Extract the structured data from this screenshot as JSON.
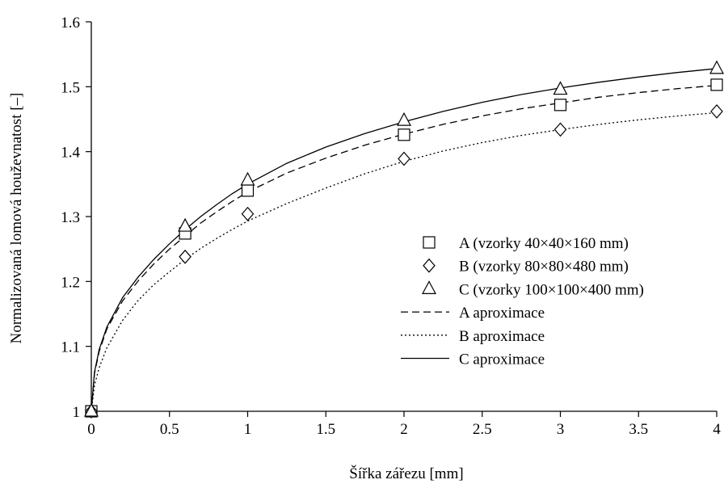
{
  "chart_data": {
    "type": "scatter",
    "title": "",
    "xlabel": "Šířka zářezu [mm]",
    "ylabel": "Normalizovaná lomová houževnatost [–]",
    "xlim": [
      0,
      4
    ],
    "ylim": [
      1,
      1.6
    ],
    "xticks": [
      0,
      0.5,
      1,
      1.5,
      2,
      2.5,
      3,
      3.5,
      4
    ],
    "xtick_labels": [
      "0",
      "0.5",
      "1",
      "1.5",
      "2",
      "2.5",
      "3",
      "3.5",
      "4"
    ],
    "yticks": [
      1,
      1.1,
      1.2,
      1.3,
      1.4,
      1.5,
      1.6
    ],
    "ytick_labels": [
      "1",
      "1.1",
      "1.2",
      "1.3",
      "1.4",
      "1.5",
      "1.6"
    ],
    "grid": false,
    "legend_position": "right",
    "series": [
      {
        "name": "A (vzorky 40×40×160 mm)",
        "kind": "markers",
        "marker": "square",
        "x": [
          0,
          0.6,
          1,
          2,
          3,
          4
        ],
        "y": [
          1.0,
          1.274,
          1.34,
          1.426,
          1.472,
          1.503
        ]
      },
      {
        "name": "B (vzorky 80×80×480 mm)",
        "kind": "markers",
        "marker": "diamond",
        "x": [
          0,
          0.6,
          1,
          2,
          3,
          4
        ],
        "y": [
          1.0,
          1.238,
          1.304,
          1.389,
          1.434,
          1.462
        ]
      },
      {
        "name": "C (vzorky 100×100×400 mm)",
        "kind": "markers",
        "marker": "triangle",
        "x": [
          0,
          0.6,
          1,
          2,
          3,
          4
        ],
        "y": [
          1.0,
          1.285,
          1.356,
          1.448,
          1.496,
          1.528
        ]
      },
      {
        "name": "A aproximace",
        "kind": "line",
        "style": "dashed",
        "x": [
          0,
          0.02,
          0.05,
          0.1,
          0.2,
          0.3,
          0.4,
          0.5,
          0.6,
          0.7,
          0.8,
          0.9,
          1,
          1.25,
          1.5,
          1.75,
          2,
          2.25,
          2.5,
          2.75,
          3,
          3.25,
          3.5,
          3.75,
          4
        ],
        "y": [
          1.0,
          1.058,
          1.092,
          1.127,
          1.17,
          1.201,
          1.227,
          1.25,
          1.27,
          1.29,
          1.307,
          1.323,
          1.338,
          1.367,
          1.39,
          1.41,
          1.427,
          1.442,
          1.455,
          1.466,
          1.475,
          1.484,
          1.491,
          1.497,
          1.502
        ]
      },
      {
        "name": "B aproximace",
        "kind": "line",
        "style": "dotted",
        "x": [
          0,
          0.02,
          0.05,
          0.1,
          0.2,
          0.3,
          0.4,
          0.5,
          0.6,
          0.7,
          0.8,
          0.9,
          1,
          1.25,
          1.5,
          1.75,
          2,
          2.25,
          2.5,
          2.75,
          3,
          3.25,
          3.5,
          3.75,
          4
        ],
        "y": [
          1.0,
          1.04,
          1.067,
          1.098,
          1.14,
          1.171,
          1.195,
          1.215,
          1.234,
          1.251,
          1.266,
          1.28,
          1.293,
          1.32,
          1.344,
          1.366,
          1.385,
          1.401,
          1.414,
          1.425,
          1.434,
          1.442,
          1.449,
          1.455,
          1.46
        ]
      },
      {
        "name": "C aproximace",
        "kind": "line",
        "style": "solid",
        "x": [
          0,
          0.02,
          0.05,
          0.1,
          0.2,
          0.3,
          0.4,
          0.5,
          0.6,
          0.7,
          0.8,
          0.9,
          1,
          1.25,
          1.5,
          1.75,
          2,
          2.25,
          2.5,
          2.75,
          3,
          3.25,
          3.5,
          3.75,
          4
        ],
        "y": [
          1.0,
          1.06,
          1.095,
          1.13,
          1.175,
          1.207,
          1.234,
          1.258,
          1.28,
          1.3,
          1.318,
          1.335,
          1.35,
          1.382,
          1.407,
          1.428,
          1.446,
          1.462,
          1.476,
          1.488,
          1.498,
          1.507,
          1.515,
          1.522,
          1.528
        ]
      }
    ]
  }
}
